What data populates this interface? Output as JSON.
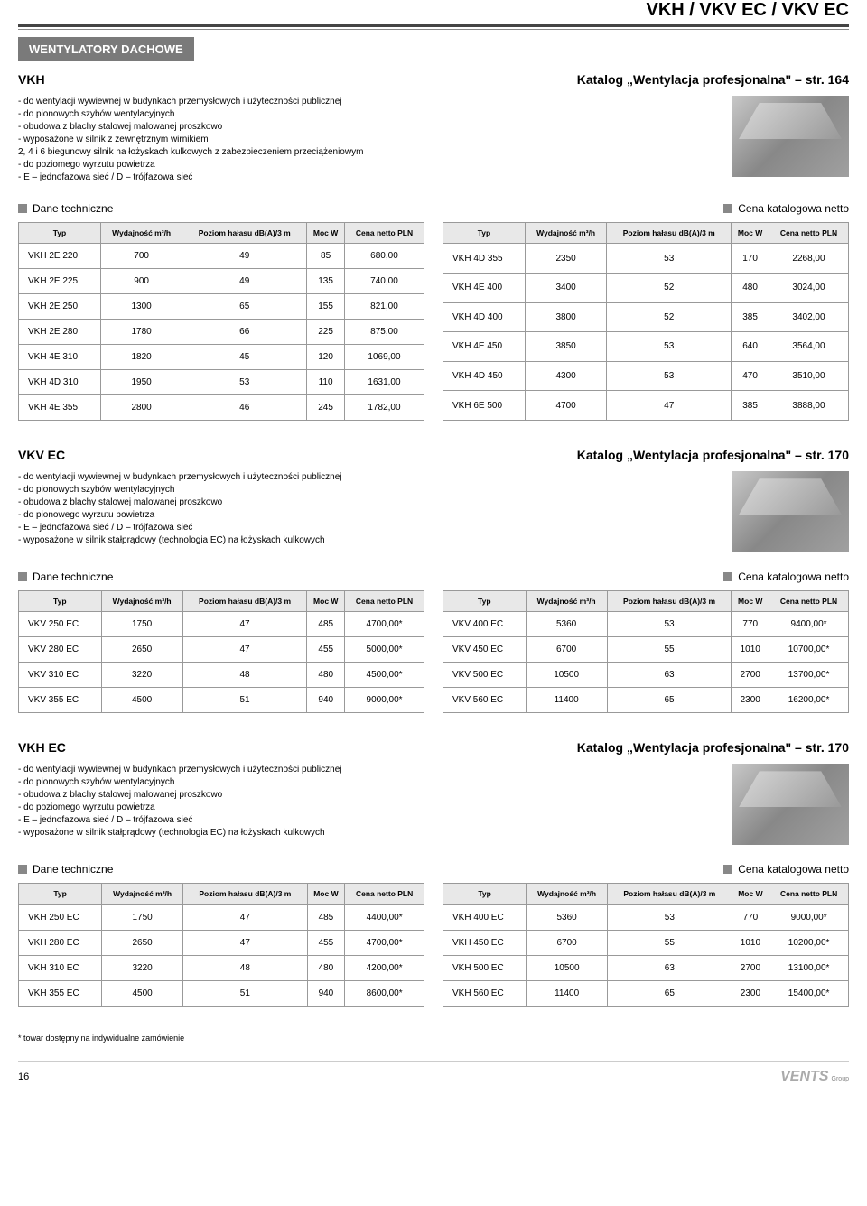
{
  "page_title": "VKH / VKV EC / VKV EC",
  "section_tab": "WENTYLATORY DACHOWE",
  "tech_section_label": "Dane techniczne",
  "price_section_label": "Cena katalogowa netto",
  "col_typ": "Typ",
  "col_wyd": "Wydajność m³/h",
  "col_halas": "Poziom hałasu dB(A)/3 m",
  "col_moc": "Moc W",
  "col_cena": "Cena netto PLN",
  "vkh": {
    "title": "VKH",
    "katalog": "Katalog „Wentylacja profesjonalna\" – str. 164",
    "desc": [
      "- do wentylacji wywiewnej w budynkach przemysłowych i użyteczności publicznej",
      "- do pionowych szybów wentylacyjnych",
      "- obudowa z blachy stalowej malowanej proszkowo",
      "- wyposażone w silnik z zewnętrznym wirnikiem",
      "  2, 4 i 6 biegunowy silnik na łożyskach kulkowych z zabezpieczeniem przeciążeniowym",
      "- do poziomego wyrzutu powietrza",
      "- E – jednofazowa sieć / D – trójfazowa sieć"
    ],
    "left": [
      [
        "VKH 2E 220",
        "700",
        "49",
        "85",
        "680,00"
      ],
      [
        "VKH 2E 225",
        "900",
        "49",
        "135",
        "740,00"
      ],
      [
        "VKH 2E 250",
        "1300",
        "65",
        "155",
        "821,00"
      ],
      [
        "VKH 2E 280",
        "1780",
        "66",
        "225",
        "875,00"
      ],
      [
        "VKH 4E 310",
        "1820",
        "45",
        "120",
        "1069,00"
      ],
      [
        "VKH 4D 310",
        "1950",
        "53",
        "110",
        "1631,00"
      ],
      [
        "VKH 4E 355",
        "2800",
        "46",
        "245",
        "1782,00"
      ]
    ],
    "right": [
      [
        "VKH 4D 355",
        "2350",
        "53",
        "170",
        "2268,00"
      ],
      [
        "VKH 4E 400",
        "3400",
        "52",
        "480",
        "3024,00"
      ],
      [
        "VKH 4D 400",
        "3800",
        "52",
        "385",
        "3402,00"
      ],
      [
        "VKH 4E 450",
        "3850",
        "53",
        "640",
        "3564,00"
      ],
      [
        "VKH 4D 450",
        "4300",
        "53",
        "470",
        "3510,00"
      ],
      [
        "VKH 6E 500",
        "4700",
        "47",
        "385",
        "3888,00"
      ]
    ]
  },
  "vkv": {
    "title": "VKV EC",
    "katalog": "Katalog „Wentylacja profesjonalna\" – str. 170",
    "desc": [
      "- do wentylacji wywiewnej w budynkach przemysłowych i użyteczności publicznej",
      "- do pionowych szybów wentylacyjnych",
      "- obudowa z blachy stalowej malowanej proszkowo",
      "- do pionowego wyrzutu powietrza",
      "- E – jednofazowa sieć / D – trójfazowa sieć",
      "- wyposażone w silnik stałprądowy (technologia EC) na łożyskach kulkowych"
    ],
    "left": [
      [
        "VKV 250 EC",
        "1750",
        "47",
        "485",
        "4700,00*"
      ],
      [
        "VKV 280 EC",
        "2650",
        "47",
        "455",
        "5000,00*"
      ],
      [
        "VKV 310 EC",
        "3220",
        "48",
        "480",
        "4500,00*"
      ],
      [
        "VKV 355 EC",
        "4500",
        "51",
        "940",
        "9000,00*"
      ]
    ],
    "right": [
      [
        "VKV 400 EC",
        "5360",
        "53",
        "770",
        "9400,00*"
      ],
      [
        "VKV 450 EC",
        "6700",
        "55",
        "1010",
        "10700,00*"
      ],
      [
        "VKV 500 EC",
        "10500",
        "63",
        "2700",
        "13700,00*"
      ],
      [
        "VKV 560 EC",
        "11400",
        "65",
        "2300",
        "16200,00*"
      ]
    ]
  },
  "vkhec": {
    "title": "VKH EC",
    "katalog": "Katalog „Wentylacja profesjonalna\" – str. 170",
    "desc": [
      "- do wentylacji wywiewnej w budynkach przemysłowych i użyteczności publicznej",
      "- do pionowych szybów wentylacyjnych",
      "- obudowa z blachy stalowej malowanej proszkowo",
      "- do poziomego wyrzutu powietrza",
      "- E – jednofazowa sieć / D – trójfazowa sieć",
      "- wyposażone w silnik stałprądowy (technologia EC) na łożyskach kulkowych"
    ],
    "left": [
      [
        "VKH 250 EC",
        "1750",
        "47",
        "485",
        "4400,00*"
      ],
      [
        "VKH 280 EC",
        "2650",
        "47",
        "455",
        "4700,00*"
      ],
      [
        "VKH 310 EC",
        "3220",
        "48",
        "480",
        "4200,00*"
      ],
      [
        "VKH 355 EC",
        "4500",
        "51",
        "940",
        "8600,00*"
      ]
    ],
    "right": [
      [
        "VKH 400 EC",
        "5360",
        "53",
        "770",
        "9000,00*"
      ],
      [
        "VKH 450 EC",
        "6700",
        "55",
        "1010",
        "10200,00*"
      ],
      [
        "VKH 500 EC",
        "10500",
        "63",
        "2700",
        "13100,00*"
      ],
      [
        "VKH 560 EC",
        "11400",
        "65",
        "2300",
        "15400,00*"
      ]
    ]
  },
  "footnote": "* towar dostępny na indywidualne zamówienie",
  "page_num": "16",
  "brand": "VENTS",
  "brand_sub": "Group"
}
